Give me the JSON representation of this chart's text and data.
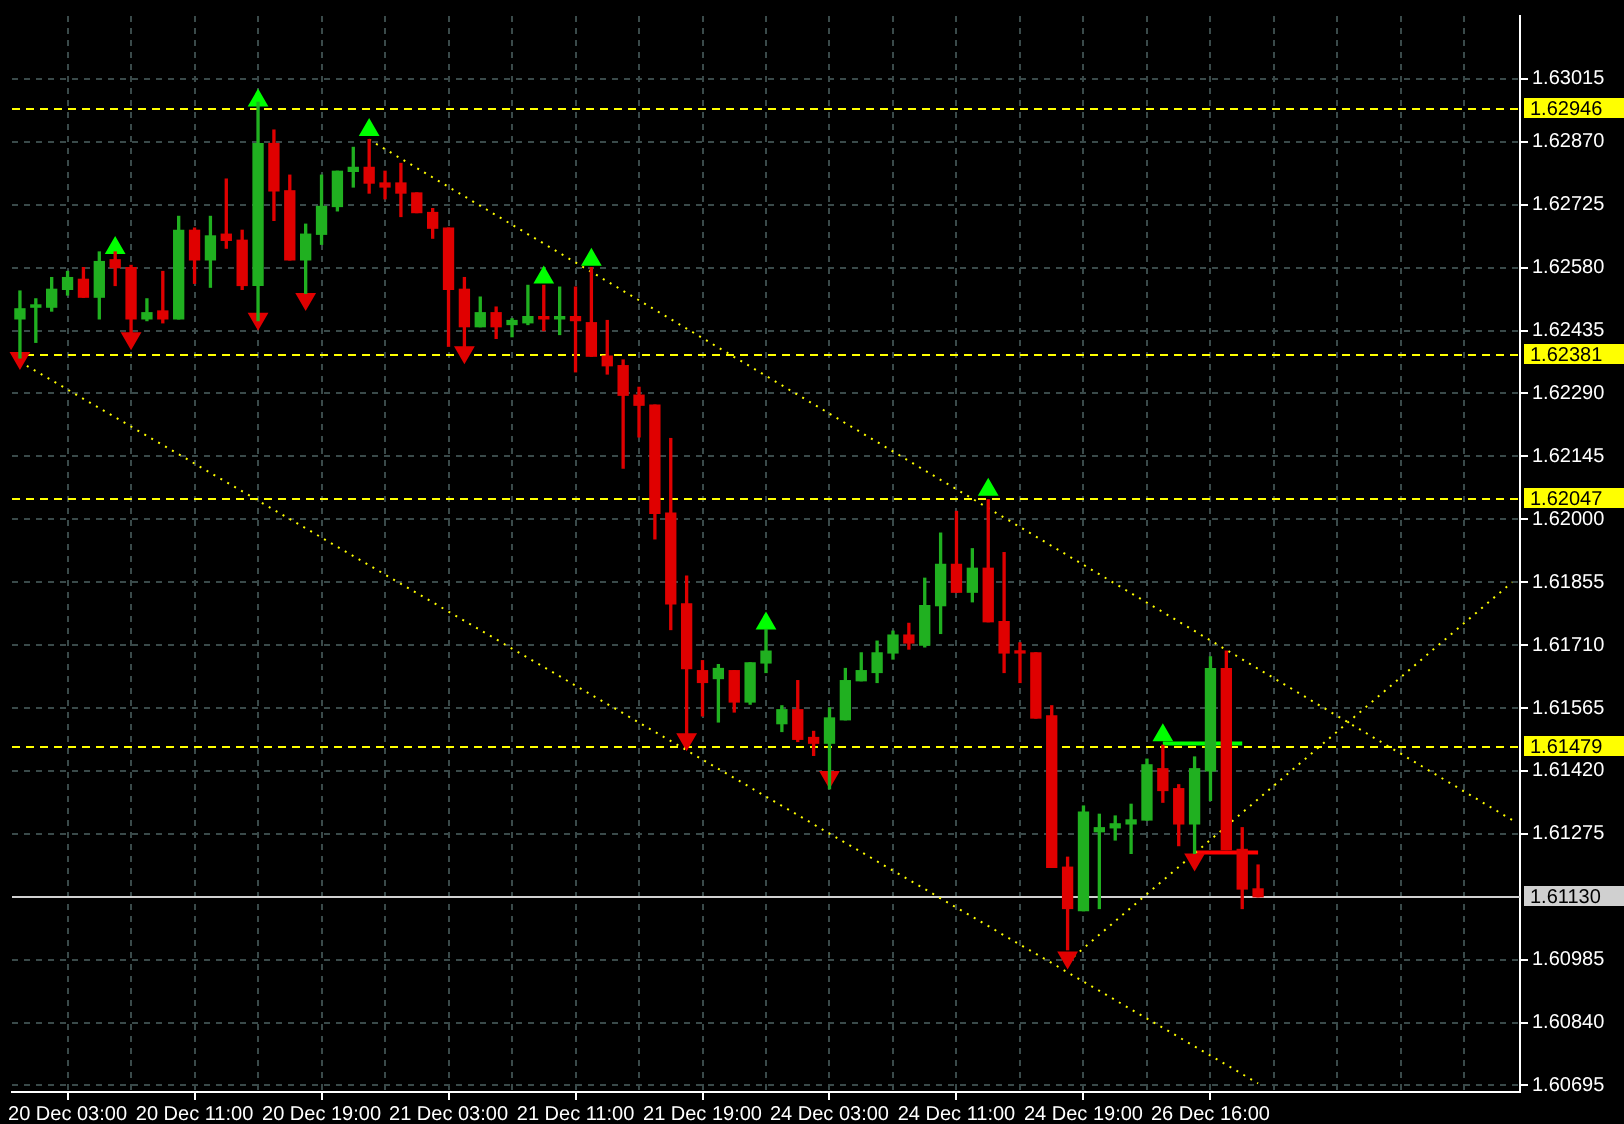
{
  "chart_data": {
    "type": "candlestick",
    "categories": [
      null,
      null,
      null,
      "20 Dec 03:00",
      null,
      null,
      null,
      null,
      null,
      null,
      null,
      "20 Dec 11:00",
      null,
      null,
      null,
      null,
      null,
      null,
      null,
      "20 Dec 19:00",
      null,
      null,
      null,
      null,
      null,
      null,
      null,
      "21 Dec 03:00",
      null,
      null,
      null,
      null,
      null,
      null,
      null,
      "21 Dec 11:00",
      null,
      null,
      null,
      null,
      null,
      null,
      null,
      "21 Dec 19:00",
      null,
      null,
      null,
      null,
      null,
      null,
      null,
      "24 Dec 03:00",
      null,
      null,
      null,
      null,
      null,
      null,
      null,
      "24 Dec 11:00",
      null,
      null,
      null,
      null,
      null,
      null,
      null,
      "24 Dec 19:00",
      null,
      null,
      null,
      null,
      null,
      null,
      null,
      "26 Dec 16:00",
      null,
      null,
      null,
      null,
      null,
      null,
      null,
      null,
      null,
      null,
      null,
      null,
      null,
      null,
      null,
      null,
      null,
      null,
      null
    ],
    "ohlc": [
      [
        1.62462,
        1.62526,
        1.62372,
        1.62485
      ],
      [
        1.62489,
        1.62508,
        1.62408,
        1.62494
      ],
      [
        1.62489,
        1.62557,
        1.6248,
        1.6253
      ],
      [
        1.6253,
        1.62571,
        1.62517,
        1.62557
      ],
      [
        1.62553,
        1.6258,
        1.62512,
        1.62512
      ],
      [
        1.62512,
        1.62616,
        1.62462,
        1.62594
      ],
      [
        1.62598,
        1.62616,
        1.62539,
        1.6258
      ],
      [
        1.6258,
        1.62585,
        1.62399,
        1.62462
      ],
      [
        1.62462,
        1.62508,
        1.62458,
        1.62476
      ],
      [
        1.6248,
        1.62571,
        1.62453,
        1.62462
      ],
      [
        1.62462,
        1.62698,
        1.62462,
        1.62666
      ],
      [
        1.62666,
        1.62671,
        1.62544,
        1.62598
      ],
      [
        1.62598,
        1.62698,
        1.62535,
        1.62653
      ],
      [
        1.62657,
        1.62784,
        1.62625,
        1.62643
      ],
      [
        1.62643,
        1.62666,
        1.6253,
        1.62539
      ],
      [
        1.62539,
        1.62961,
        1.62458,
        1.62866
      ],
      [
        1.62866,
        1.62897,
        1.62689,
        1.62757
      ],
      [
        1.62757,
        1.62793,
        1.62598,
        1.62598
      ],
      [
        1.62598,
        1.6268,
        1.62521,
        1.62657
      ],
      [
        1.62657,
        1.62793,
        1.62634,
        1.62721
      ],
      [
        1.62721,
        1.62802,
        1.62711,
        1.62802
      ],
      [
        1.62802,
        1.62857,
        1.62766,
        1.62811
      ],
      [
        1.62811,
        1.62875,
        1.62752,
        1.62775
      ],
      [
        1.62775,
        1.62802,
        1.62739,
        1.62766
      ],
      [
        1.62775,
        1.6282,
        1.62698,
        1.62752
      ],
      [
        1.62752,
        1.62752,
        1.62707,
        1.62707
      ],
      [
        1.62707,
        1.62716,
        1.62648,
        1.62671
      ],
      [
        1.62671,
        1.62671,
        1.62399,
        1.6253
      ],
      [
        1.6253,
        1.62557,
        1.62385,
        1.62444
      ],
      [
        1.62444,
        1.62512,
        1.62444,
        1.62476
      ],
      [
        1.62476,
        1.62489,
        1.62417,
        1.62444
      ],
      [
        1.62449,
        1.62462,
        1.62421,
        1.62458
      ],
      [
        1.62453,
        1.62539,
        1.62449,
        1.62467
      ],
      [
        1.62467,
        1.62539,
        1.62435,
        1.62462
      ],
      [
        1.62462,
        1.62535,
        1.62426,
        1.62467
      ],
      [
        1.62467,
        1.62535,
        1.6234,
        1.62458
      ],
      [
        1.62453,
        1.6258,
        1.62376,
        1.62376
      ],
      [
        1.62376,
        1.62458,
        1.62335,
        1.62354
      ],
      [
        1.62354,
        1.62367,
        1.62118,
        1.62286
      ],
      [
        1.62286,
        1.62304,
        1.6219,
        1.62263
      ],
      [
        1.62263,
        1.62263,
        1.61955,
        1.62014
      ],
      [
        1.62014,
        1.62186,
        1.61746,
        1.61805
      ],
      [
        1.61805,
        1.61869,
        1.61493,
        1.61656
      ],
      [
        1.61651,
        1.61674,
        1.61547,
        1.61624
      ],
      [
        1.61633,
        1.61665,
        1.61533,
        1.61656
      ],
      [
        1.61651,
        1.61651,
        1.61556,
        1.61579
      ],
      [
        1.61579,
        1.61669,
        1.61574,
        1.61669
      ],
      [
        1.61669,
        1.61746,
        1.61647,
        1.61696
      ],
      [
        1.61529,
        1.6157,
        1.61511,
        1.61561
      ],
      [
        1.61561,
        1.61628,
        1.61488,
        1.61493
      ],
      [
        1.61497,
        1.61511,
        1.61456,
        1.61484
      ],
      [
        1.61484,
        1.61565,
        1.61379,
        1.61542
      ],
      [
        1.61538,
        1.61656,
        1.61538,
        1.61628
      ],
      [
        1.61628,
        1.61692,
        1.61628,
        1.61651
      ],
      [
        1.61647,
        1.61719,
        1.61624,
        1.61692
      ],
      [
        1.61692,
        1.61742,
        1.61678,
        1.61733
      ],
      [
        1.61733,
        1.6176,
        1.61701,
        1.61715
      ],
      [
        1.6171,
        1.61864,
        1.61706,
        1.61801
      ],
      [
        1.61801,
        1.61968,
        1.61737,
        1.61896
      ],
      [
        1.61896,
        1.62018,
        1.61832,
        1.61832
      ],
      [
        1.61832,
        1.61932,
        1.6181,
        1.61887
      ],
      [
        1.61887,
        1.62045,
        1.61764,
        1.61764
      ],
      [
        1.61764,
        1.61923,
        1.61647,
        1.61692
      ],
      [
        1.61696,
        1.61715,
        1.61624,
        1.61692
      ],
      [
        1.61692,
        1.61692,
        1.61542,
        1.61542
      ],
      [
        1.61547,
        1.6157,
        1.61198,
        1.61198
      ],
      [
        1.61198,
        1.61221,
        1.61008,
        1.61103
      ],
      [
        1.61098,
        1.61339,
        1.61098,
        1.61325
      ],
      [
        1.6128,
        1.6132,
        1.61103,
        1.61289
      ],
      [
        1.61289,
        1.61316,
        1.61261,
        1.61298
      ],
      [
        1.61298,
        1.61343,
        1.6123,
        1.61307
      ],
      [
        1.61307,
        1.61447,
        1.61307,
        1.61434
      ],
      [
        1.61425,
        1.61479,
        1.61348,
        1.61375
      ],
      [
        1.61379,
        1.61388,
        1.61248,
        1.61298
      ],
      [
        1.61298,
        1.61452,
        1.6123,
        1.61425
      ],
      [
        1.6142,
        1.61683,
        1.61352,
        1.61656
      ],
      [
        1.61656,
        1.61696,
        1.61239,
        1.61239
      ],
      [
        1.61239,
        1.61289,
        1.61103,
        1.61148
      ],
      [
        1.61148,
        1.61203,
        1.6113,
        1.6113
      ],
      null,
      null,
      null,
      null,
      null,
      null,
      null,
      null,
      null,
      null,
      null,
      null,
      null,
      null,
      null,
      null
    ],
    "colors": [
      "#20b020",
      "#20b020",
      "#20b020",
      "#20b020",
      "#e00000",
      "#20b020",
      "#e00000",
      "#e00000",
      "#20b020",
      "#e00000",
      "#20b020",
      "#e00000",
      "#20b020",
      "#e00000",
      "#e00000",
      "#20b020",
      "#e00000",
      "#e00000",
      "#20b020",
      "#20b020",
      "#20b020",
      "#20b020",
      "#e00000",
      "#e00000",
      "#e00000",
      "#e00000",
      "#e00000",
      "#e00000",
      "#e00000",
      "#20b020",
      "#e00000",
      "#20b020",
      "#20b020",
      "#e00000",
      "#20b020",
      "#e00000",
      "#e00000",
      "#e00000",
      "#e00000",
      "#e00000",
      "#e00000",
      "#e00000",
      "#e00000",
      "#e00000",
      "#20b020",
      "#e00000",
      "#20b020",
      "#20b020",
      "#20b020",
      "#e00000",
      "#e00000",
      "#20b020",
      "#20b020",
      "#20b020",
      "#20b020",
      "#20b020",
      "#e00000",
      "#20b020",
      "#20b020",
      "#e00000",
      "#20b020",
      "#e00000",
      "#e00000",
      "#e00000",
      "#e00000",
      "#e00000",
      "#e00000",
      "#20b020",
      "#20b020",
      "#20b020",
      "#20b020",
      "#20b020",
      "#e00000",
      "#e00000",
      "#20b020",
      "#20b020",
      "#e00000",
      "#e00000",
      "#e00000",
      null,
      null,
      null,
      null,
      null,
      null,
      null,
      null,
      null,
      null,
      null,
      null,
      null,
      null,
      null,
      null
    ],
    "series": [
      {
        "type": "line",
        "color": "#ffff00",
        "line_style": "dotted",
        "values": [
          null,
          null,
          null,
          null,
          null,
          null,
          null,
          null,
          null,
          null,
          null,
          null,
          null,
          null,
          null,
          null,
          null,
          null,
          null,
          null,
          null,
          null,
          1.62875,
          null,
          null,
          null,
          null,
          null,
          null,
          null,
          null,
          null,
          null,
          null,
          null,
          null,
          null,
          null,
          null,
          null,
          null,
          null,
          null,
          null,
          null,
          null,
          null,
          null,
          null,
          null,
          null,
          null,
          null,
          null,
          null,
          null,
          null,
          null,
          null,
          null,
          null,
          null,
          null,
          null,
          null,
          null,
          null,
          null,
          null,
          null,
          null,
          null,
          null,
          null,
          null,
          null,
          null,
          null,
          null,
          null,
          null,
          null,
          null,
          null,
          null,
          null,
          null,
          null,
          null,
          null,
          null,
          null,
          null,
          null,
          1.61307
        ]
      },
      {
        "type": "line",
        "color": "#ffff00",
        "line_style": "dotted",
        "values": [
          1.62363,
          null,
          null,
          null,
          null,
          null,
          null,
          null,
          null,
          null,
          null,
          null,
          null,
          null,
          null,
          null,
          null,
          null,
          null,
          null,
          null,
          null,
          null,
          null,
          null,
          null,
          null,
          null,
          null,
          null,
          null,
          null,
          null,
          null,
          null,
          null,
          null,
          null,
          null,
          null,
          null,
          null,
          null,
          null,
          null,
          null,
          null,
          null,
          null,
          null,
          null,
          null,
          null,
          null,
          null,
          null,
          null,
          null,
          null,
          null,
          null,
          null,
          null,
          null,
          null,
          null,
          null,
          null,
          null,
          null,
          null,
          null,
          null,
          null,
          null,
          null,
          null,
          null,
          1.607,
          null,
          null,
          null,
          null,
          null,
          null,
          null,
          null,
          null,
          null,
          null,
          null,
          null,
          null,
          null,
          null
        ]
      },
      {
        "type": "line",
        "color": "#ffff00",
        "line_style": "dotted",
        "values": [
          null,
          null,
          null,
          null,
          null,
          null,
          null,
          null,
          null,
          null,
          null,
          null,
          null,
          null,
          null,
          null,
          null,
          null,
          null,
          null,
          null,
          null,
          null,
          null,
          null,
          null,
          null,
          null,
          null,
          null,
          null,
          null,
          null,
          null,
          null,
          null,
          null,
          null,
          null,
          null,
          null,
          null,
          null,
          null,
          null,
          null,
          null,
          null,
          null,
          null,
          null,
          null,
          null,
          null,
          null,
          null,
          null,
          null,
          null,
          null,
          null,
          null,
          null,
          null,
          null,
          null,
          1.6098,
          null,
          null,
          null,
          null,
          null,
          null,
          null,
          null,
          null,
          null,
          null,
          null,
          null,
          null,
          null,
          null,
          null,
          null,
          null,
          null,
          null,
          null,
          null,
          null,
          null,
          null,
          null,
          1.61855
        ]
      },
      {
        "type": "line",
        "color": "#00ff00",
        "line_style": "solid",
        "values": [
          null,
          null,
          null,
          null,
          null,
          null,
          null,
          null,
          null,
          null,
          null,
          null,
          null,
          null,
          null,
          null,
          null,
          null,
          null,
          null,
          null,
          null,
          null,
          null,
          null,
          null,
          null,
          null,
          null,
          null,
          null,
          null,
          null,
          null,
          null,
          null,
          null,
          null,
          null,
          null,
          null,
          null,
          null,
          null,
          null,
          null,
          null,
          null,
          null,
          null,
          null,
          null,
          null,
          null,
          null,
          null,
          null,
          null,
          null,
          null,
          null,
          null,
          null,
          null,
          null,
          null,
          null,
          null,
          null,
          null,
          null,
          null,
          1.61483,
          null,
          null,
          null,
          null,
          1.61483,
          null,
          null,
          null,
          null,
          null,
          null,
          null,
          null,
          null,
          null,
          null,
          null,
          null,
          null,
          null,
          null,
          null
        ]
      },
      {
        "type": "line",
        "color": "#ff0000",
        "line_style": "solid",
        "values": [
          null,
          null,
          null,
          null,
          null,
          null,
          null,
          null,
          null,
          null,
          null,
          null,
          null,
          null,
          null,
          null,
          null,
          null,
          null,
          null,
          null,
          null,
          null,
          null,
          null,
          null,
          null,
          null,
          null,
          null,
          null,
          null,
          null,
          null,
          null,
          null,
          null,
          null,
          null,
          null,
          null,
          null,
          null,
          null,
          null,
          null,
          null,
          null,
          null,
          null,
          null,
          null,
          null,
          null,
          null,
          null,
          null,
          null,
          null,
          null,
          null,
          null,
          null,
          null,
          null,
          null,
          null,
          null,
          null,
          null,
          null,
          null,
          null,
          null,
          1.61232,
          null,
          null,
          null,
          1.61232,
          null,
          null,
          null,
          null,
          null,
          null,
          null,
          null,
          null,
          null,
          null,
          null,
          null,
          null,
          null,
          null
        ]
      },
      {
        "type": "scatter",
        "color": "#00ff00",
        "marker": "triangle",
        "values": [
          null,
          null,
          null,
          null,
          null,
          null,
          1.62625,
          null,
          null,
          null,
          null,
          null,
          null,
          null,
          null,
          1.62965,
          null,
          null,
          null,
          null,
          null,
          null,
          1.62897,
          null,
          null,
          null,
          null,
          null,
          null,
          null,
          null,
          null,
          null,
          1.62557,
          null,
          null,
          1.62598,
          null,
          null,
          null,
          null,
          null,
          null,
          null,
          null,
          null,
          null,
          1.6176,
          null,
          null,
          null,
          null,
          null,
          null,
          null,
          null,
          null,
          null,
          null,
          null,
          null,
          1.62068,
          null,
          null,
          null,
          null,
          null,
          null,
          null,
          null,
          null,
          null,
          1.61502,
          null,
          null,
          null,
          null,
          null,
          null,
          null,
          null,
          null,
          null,
          null,
          null,
          null,
          null,
          null,
          null,
          null,
          null,
          null,
          null,
          null,
          null
        ]
      },
      {
        "type": "scatter",
        "color": "#e00000",
        "marker": "triangle",
        "values": [
          1.62372,
          null,
          null,
          null,
          null,
          null,
          null,
          1.62417,
          null,
          null,
          null,
          null,
          null,
          null,
          null,
          1.62462,
          null,
          null,
          1.62508,
          null,
          null,
          null,
          null,
          null,
          null,
          null,
          null,
          null,
          1.62385,
          null,
          null,
          null,
          null,
          null,
          null,
          null,
          null,
          null,
          null,
          null,
          null,
          null,
          1.61493,
          null,
          null,
          null,
          null,
          null,
          null,
          null,
          null,
          1.61406,
          null,
          null,
          null,
          null,
          null,
          null,
          null,
          null,
          null,
          null,
          null,
          null,
          null,
          null,
          1.6099,
          null,
          null,
          null,
          null,
          null,
          null,
          null,
          1.61216,
          null,
          null,
          null,
          null,
          null,
          null,
          null,
          null,
          null,
          null,
          null,
          null,
          null,
          null,
          null,
          null,
          null,
          null,
          null,
          null
        ]
      }
    ],
    "ref_lines": [
      {
        "axis": "y",
        "value": 1.62946,
        "label": "1.62946",
        "color": "#ffff00",
        "line_style": "dashed"
      },
      {
        "axis": "y",
        "value": 1.62381,
        "label": "1.62381",
        "color": "#ffff00",
        "line_style": "dashed"
      },
      {
        "axis": "y",
        "value": 1.62047,
        "label": "1.62047",
        "color": "#ffff00",
        "line_style": "dashed"
      },
      {
        "axis": "y",
        "value": 1.61479,
        "label": "1.61479",
        "color": "#ffff00",
        "line_style": "dashed"
      },
      {
        "axis": "y",
        "value": 1.6113,
        "label": "1.61130",
        "color": "#d0d0d0",
        "line_style": "solid"
      }
    ],
    "ylim": [
      1.6068,
      1.6316
    ],
    "yticks": [
      1.60695,
      {
        "value": 1.6084,
        "label": "1.60840"
      },
      1.60985,
      1.61275,
      {
        "value": 1.6142,
        "label": "1.61420"
      },
      1.61565,
      {
        "value": 1.6171,
        "label": "1.61710"
      },
      1.61855,
      {
        "value": 1.62,
        "label": "1.62000"
      },
      1.62145,
      {
        "value": 1.6229,
        "label": "1.62290"
      },
      1.62435,
      {
        "value": 1.6258,
        "label": "1.62580"
      },
      1.62725,
      {
        "value": 1.6287,
        "label": "1.62870"
      },
      1.63015
    ],
    "grid": true
  }
}
